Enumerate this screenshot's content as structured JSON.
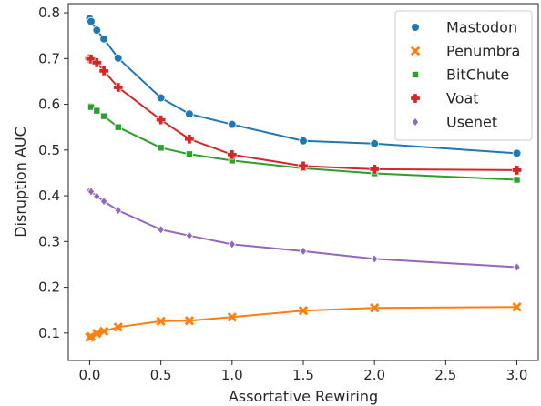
{
  "chart_data": {
    "type": "line",
    "xlabel": "Assortative Rewiring",
    "ylabel": "Disruption AUC",
    "xlim": [
      -0.15,
      3.15
    ],
    "ylim": [
      0.04,
      0.82
    ],
    "xticks": [
      0.0,
      0.5,
      1.0,
      1.5,
      2.0,
      2.5,
      3.0
    ],
    "xtick_labels": [
      "0.0",
      "0.5",
      "1.0",
      "1.5",
      "2.0",
      "2.5",
      "3.0"
    ],
    "yticks": [
      0.1,
      0.2,
      0.3,
      0.4,
      0.5,
      0.6,
      0.7,
      0.8
    ],
    "ytick_labels": [
      "0.1",
      "0.2",
      "0.3",
      "0.4",
      "0.5",
      "0.6",
      "0.7",
      "0.8"
    ],
    "grid": false,
    "legend_position": "top-right",
    "x": [
      0,
      0.01,
      0.05,
      0.1,
      0.2,
      0.5,
      0.7,
      1.0,
      1.5,
      2.0,
      3.0
    ],
    "series": [
      {
        "name": "Mastodon",
        "color": "#1f77b4",
        "marker": "circle",
        "values": [
          0.787,
          0.781,
          0.762,
          0.743,
          0.701,
          0.614,
          0.579,
          0.556,
          0.52,
          0.514,
          0.493
        ]
      },
      {
        "name": "Penumbra",
        "color": "#ff7f0e",
        "marker": "x",
        "values": [
          0.091,
          0.092,
          0.099,
          0.104,
          0.113,
          0.126,
          0.127,
          0.135,
          0.149,
          0.155,
          0.157
        ]
      },
      {
        "name": "BitChute",
        "color": "#2ca02c",
        "marker": "square",
        "values": [
          0.596,
          0.594,
          0.586,
          0.574,
          0.55,
          0.505,
          0.491,
          0.477,
          0.46,
          0.449,
          0.435
        ]
      },
      {
        "name": "Voat",
        "color": "#d62728",
        "marker": "plus",
        "values": [
          0.7,
          0.699,
          0.691,
          0.673,
          0.637,
          0.566,
          0.524,
          0.49,
          0.465,
          0.458,
          0.456
        ]
      },
      {
        "name": "Usenet",
        "color": "#9467bd",
        "marker": "diamond",
        "values": [
          0.411,
          0.409,
          0.399,
          0.388,
          0.368,
          0.326,
          0.313,
          0.294,
          0.279,
          0.262,
          0.244
        ]
      }
    ]
  }
}
